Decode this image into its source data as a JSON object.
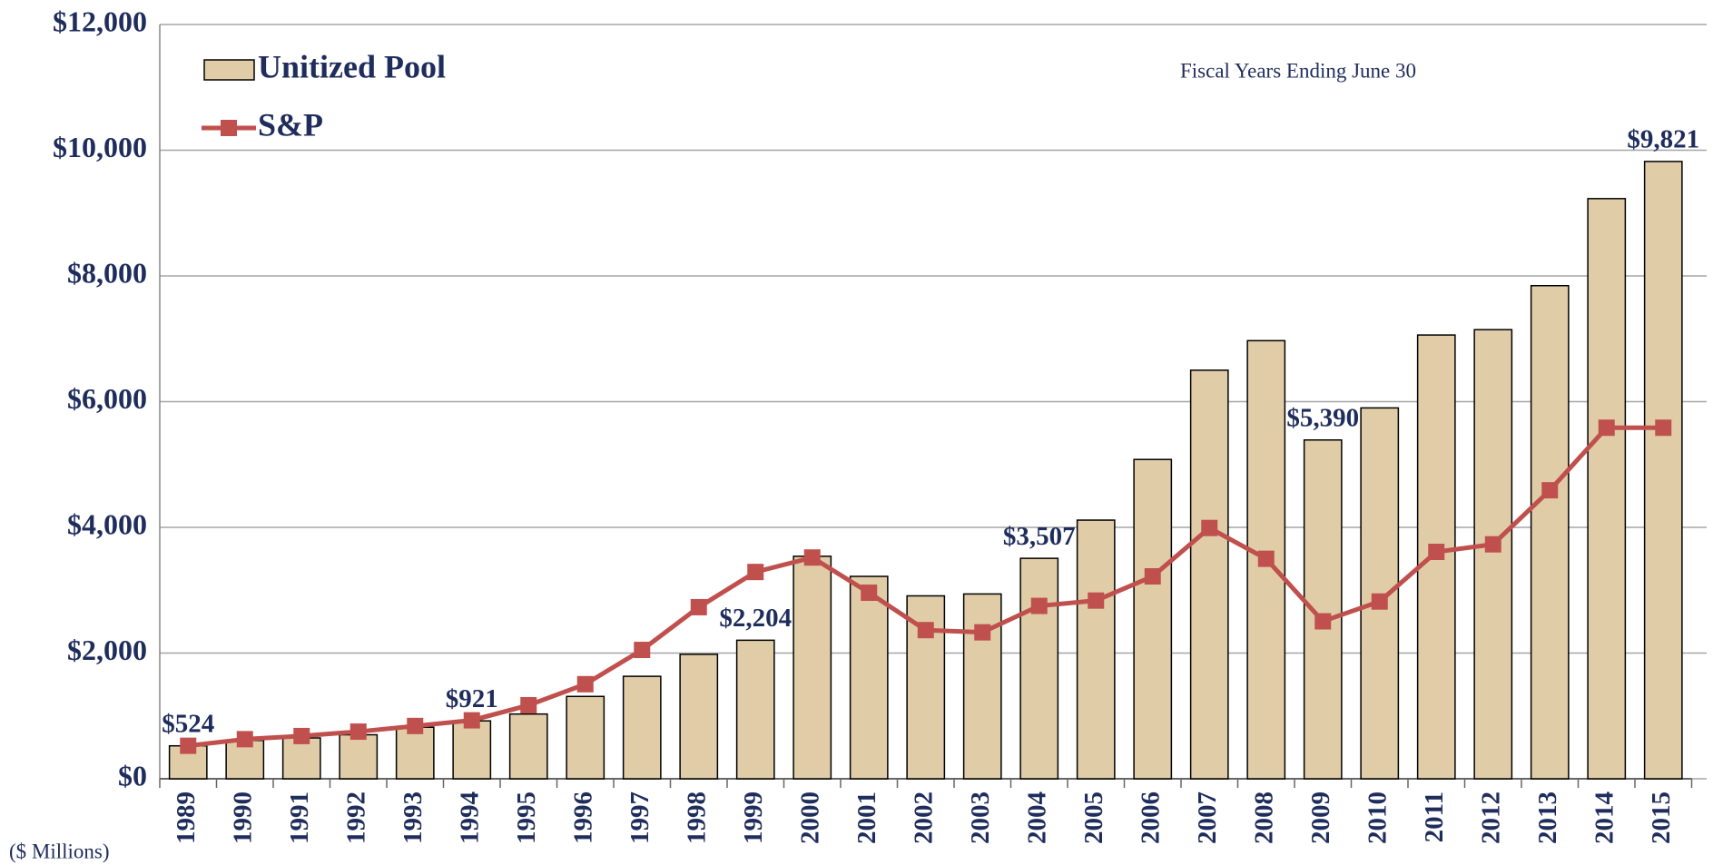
{
  "chart_data": {
    "type": "bar",
    "annotation": "Fiscal Years Ending June 30",
    "y_unit_label": "($ Millions)",
    "categories": [
      "1989",
      "1990",
      "1991",
      "1992",
      "1993",
      "1994",
      "1995",
      "1996",
      "1997",
      "1998",
      "1999",
      "2000",
      "2001",
      "2002",
      "2003",
      "2004",
      "2005",
      "2006",
      "2007",
      "2008",
      "2009",
      "2010",
      "2011",
      "2012",
      "2013",
      "2014",
      "2015"
    ],
    "series": [
      {
        "name": "Unitized Pool",
        "type": "bar",
        "color": "#e0cda8",
        "values": [
          524,
          610,
          650,
          700,
          820,
          921,
          1030,
          1310,
          1630,
          1980,
          2204,
          3540,
          3220,
          2910,
          2940,
          3507,
          4115,
          5080,
          6500,
          6970,
          5390,
          5900,
          7060,
          7145,
          7845,
          9230,
          9821
        ],
        "value_labels": [
          "$524",
          null,
          null,
          null,
          null,
          "$921",
          null,
          null,
          null,
          null,
          "$2,204",
          null,
          null,
          null,
          null,
          "$3,507",
          null,
          null,
          null,
          null,
          "$5,390",
          null,
          null,
          null,
          null,
          null,
          "$9,821"
        ]
      },
      {
        "name": "S&P",
        "type": "line",
        "color": "#c0504d",
        "values": [
          525,
          630,
          680,
          750,
          840,
          930,
          1170,
          1505,
          2050,
          2730,
          3290,
          3520,
          2960,
          2365,
          2330,
          2750,
          2835,
          3220,
          3990,
          3500,
          2505,
          2820,
          3610,
          3730,
          4590,
          5585,
          5585
        ]
      }
    ],
    "ylim": [
      0,
      12000
    ],
    "yticks": [
      {
        "value": 0,
        "label": "$0"
      },
      {
        "value": 2000,
        "label": "$2,000"
      },
      {
        "value": 4000,
        "label": "$4,000"
      },
      {
        "value": 6000,
        "label": "$6,000"
      },
      {
        "value": 8000,
        "label": "$8,000"
      },
      {
        "value": 10000,
        "label": "$10,000"
      },
      {
        "value": 12000,
        "label": "$12,000"
      }
    ],
    "grid": true,
    "legend": "top-left"
  }
}
